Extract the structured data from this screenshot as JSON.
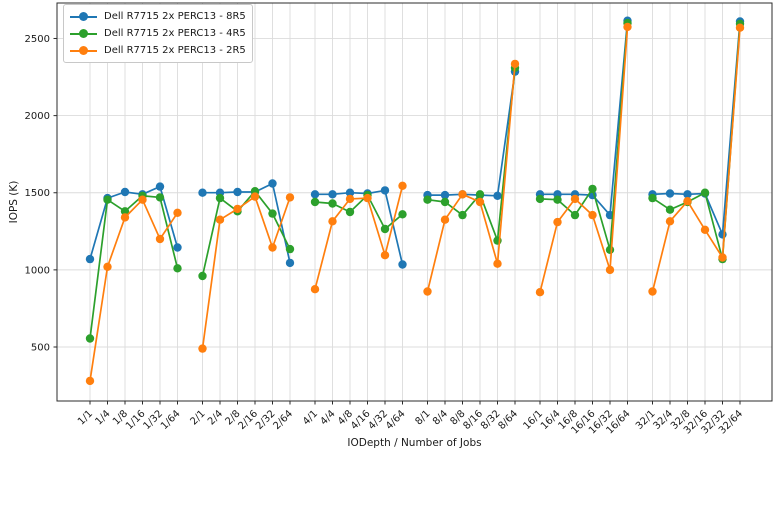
{
  "chart_data": {
    "type": "line",
    "title": "",
    "xlabel": "IODepth / Number of Jobs",
    "ylabel": "IOPS (K)",
    "grid": true,
    "legend_position": "upper-left",
    "marker": "circle",
    "line_breaks_between_groups": true,
    "group_size": 6,
    "ylim": [
      150,
      2730
    ],
    "yticks": [
      500,
      1000,
      1500,
      2000,
      2500
    ],
    "categories": [
      "1/1",
      "1/4",
      "1/8",
      "1/16",
      "1/32",
      "1/64",
      "2/1",
      "2/4",
      "2/8",
      "2/16",
      "2/32",
      "2/64",
      "4/1",
      "4/4",
      "4/8",
      "4/16",
      "4/32",
      "4/64",
      "8/1",
      "8/4",
      "8/8",
      "8/16",
      "8/32",
      "8/64",
      "16/1",
      "16/4",
      "16/8",
      "16/16",
      "16/32",
      "16/64",
      "32/1",
      "32/4",
      "32/8",
      "32/16",
      "32/32",
      "32/64"
    ],
    "series": [
      {
        "name": "Dell R7715 2x PERC13 - 8R5",
        "color": "#1f77b4",
        "values": [
          1070,
          1465,
          1505,
          1490,
          1540,
          1145,
          1500,
          1500,
          1505,
          1505,
          1560,
          1045,
          1490,
          1490,
          1500,
          1495,
          1515,
          1035,
          1485,
          1485,
          1490,
          1485,
          1480,
          2285,
          1490,
          1490,
          1490,
          1485,
          1355,
          2615,
          1490,
          1495,
          1490,
          1495,
          1230,
          2610
        ]
      },
      {
        "name": "Dell R7715 2x PERC13 - 4R5",
        "color": "#2ca02c",
        "values": [
          555,
          1455,
          1380,
          1480,
          1470,
          1010,
          960,
          1465,
          1380,
          1510,
          1365,
          1135,
          1440,
          1430,
          1375,
          1485,
          1265,
          1360,
          1455,
          1440,
          1355,
          1490,
          1190,
          2310,
          1460,
          1455,
          1355,
          1525,
          1130,
          2600,
          1465,
          1390,
          1440,
          1500,
          1070,
          2595
        ]
      },
      {
        "name": "Dell R7715 2x PERC13 - 2R5",
        "color": "#ff7f0e",
        "values": [
          280,
          1020,
          1340,
          1455,
          1200,
          1370,
          490,
          1325,
          1395,
          1475,
          1145,
          1470,
          875,
          1315,
          1460,
          1465,
          1095,
          1545,
          860,
          1325,
          1490,
          1440,
          1040,
          2335,
          855,
          1310,
          1460,
          1355,
          1000,
          2575,
          860,
          1315,
          1445,
          1260,
          1080,
          2570
        ]
      }
    ],
    "style": {
      "grid_color": "#dcdcdc",
      "spine_color": "#2b2b2b",
      "tick_label_color": "#1a1a1a",
      "background": "#ffffff"
    }
  }
}
